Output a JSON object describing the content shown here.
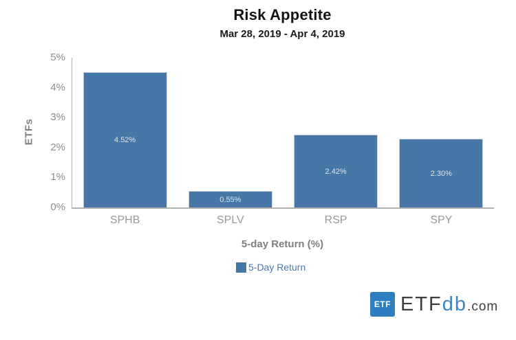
{
  "chart_data": {
    "type": "bar",
    "title": "Risk Appetite",
    "subtitle": "Mar 28, 2019 - Apr 4, 2019",
    "categories": [
      "SPHB",
      "SPLV",
      "RSP",
      "SPY"
    ],
    "series": [
      {
        "name": "5-Day Return",
        "values": [
          4.52,
          0.55,
          2.42,
          2.3
        ]
      }
    ],
    "value_labels": [
      "4.52%",
      "0.55%",
      "2.42%",
      "2.30%"
    ],
    "xlabel": "5-day Return (%)",
    "ylabel": "ETFs",
    "ylim": [
      0,
      5
    ],
    "yticks": [
      "0%",
      "1%",
      "2%",
      "3%",
      "4%",
      "5%"
    ],
    "grid": false,
    "legend_position": "bottom",
    "bar_color": "#4677a7",
    "bar_border_color": "#ccd2d8",
    "value_label_color": "#dfe5ea"
  },
  "legend": {
    "label": "5-Day Return",
    "text_color": "#4679b3"
  },
  "branding": {
    "badge": "ETF",
    "brand_etf": "ETF",
    "brand_db": "db",
    "brand_com": ".com",
    "badge_color": "#2f7ec2"
  }
}
